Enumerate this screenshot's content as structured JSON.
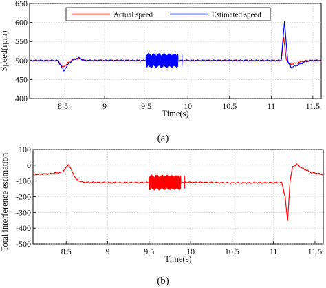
{
  "chart_data": [
    {
      "type": "line",
      "caption": "(a)",
      "xlabel": "Time(s)",
      "ylabel": "Speed(rpm)",
      "xlim": [
        8.1,
        11.6
      ],
      "ylim": [
        400,
        650
      ],
      "xticks": [
        8.5,
        9,
        9.5,
        10,
        10.5,
        11,
        11.5
      ],
      "yticks": [
        400,
        450,
        500,
        550,
        600,
        650
      ],
      "grid": true,
      "legend_position": "top-center",
      "series": [
        {
          "name": "Actual speed",
          "color": "#ff0000",
          "baseline": 500,
          "x": [
            8.1,
            8.44,
            8.5,
            8.56,
            8.62,
            8.7,
            8.76,
            9.5,
            9.88,
            9.93,
            10.0,
            11.12,
            11.15,
            11.18,
            11.22,
            11.3,
            11.38,
            11.45,
            11.6
          ],
          "y": [
            500,
            500,
            482,
            494,
            503,
            505,
            500,
            500,
            500,
            500,
            500,
            500,
            560,
            505,
            490,
            493,
            498,
            500,
            500
          ],
          "burst": {
            "x_start": 9.5,
            "x_end": 9.88,
            "amplitude": 12
          }
        },
        {
          "name": "Estimated speed",
          "color": "#0000ff",
          "baseline": 500,
          "x": [
            8.1,
            8.44,
            8.51,
            8.57,
            8.63,
            8.7,
            8.76,
            9.5,
            9.88,
            9.93,
            10.0,
            11.12,
            11.16,
            11.2,
            11.24,
            11.32,
            11.4,
            11.48,
            11.6
          ],
          "y": [
            500,
            500,
            473,
            492,
            503,
            507,
            500,
            500,
            500,
            500,
            500,
            500,
            603,
            495,
            482,
            488,
            496,
            500,
            500
          ],
          "burst": {
            "x_start": 9.5,
            "x_end": 9.88,
            "amplitude": 17
          }
        }
      ]
    },
    {
      "type": "line",
      "caption": "(b)",
      "xlabel": "Time(s)",
      "ylabel": "Total interference estimation",
      "xlim": [
        8.1,
        11.6
      ],
      "ylim": [
        -500,
        100
      ],
      "xticks": [
        8.5,
        9,
        9.5,
        10,
        10.5,
        11,
        11.5
      ],
      "yticks": [
        -500,
        -400,
        -300,
        -200,
        -100,
        0,
        100
      ],
      "grid": true,
      "series": [
        {
          "color": "#ff0000",
          "x": [
            8.1,
            8.3,
            8.45,
            8.5,
            8.53,
            8.57,
            8.62,
            8.7,
            9.0,
            9.5,
            9.88,
            9.93,
            10.5,
            11.1,
            11.14,
            11.17,
            11.2,
            11.23,
            11.28,
            11.35,
            11.45,
            11.6
          ],
          "y": [
            -60,
            -55,
            -45,
            -15,
            5,
            -40,
            -90,
            -108,
            -110,
            -110,
            -110,
            -108,
            -112,
            -110,
            -200,
            -355,
            -100,
            -10,
            5,
            -20,
            -45,
            -60
          ],
          "burst": {
            "x_start": 9.5,
            "x_end": 9.88,
            "amplitude": 45
          }
        }
      ]
    }
  ]
}
